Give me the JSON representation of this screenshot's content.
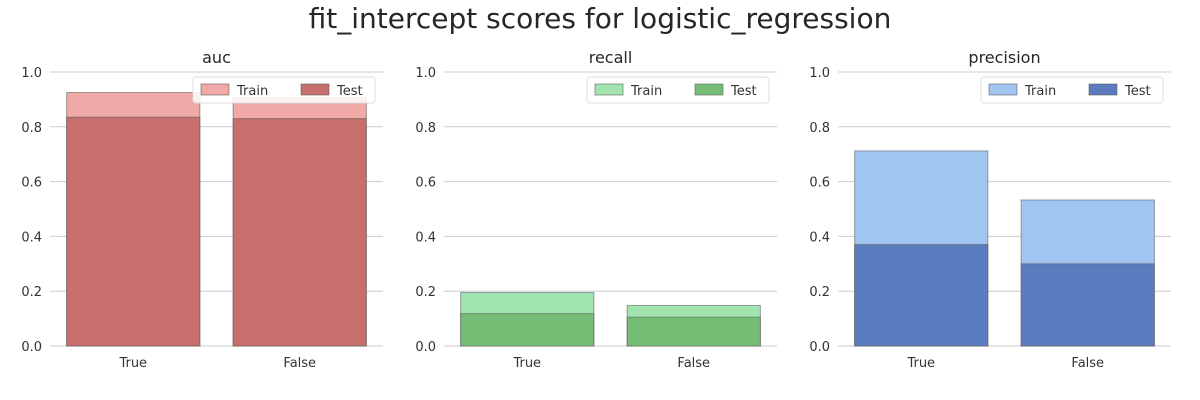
{
  "title": "fit_intercept scores for logistic_regression",
  "chart_data": [
    {
      "type": "bar",
      "title": "auc",
      "categories": [
        "True",
        "False"
      ],
      "ylim": [
        0,
        1.0
      ],
      "yticks": [
        "0.0",
        "0.2",
        "0.4",
        "0.6",
        "0.8",
        "1.0"
      ],
      "grid": true,
      "legend_position": "top-right",
      "series": [
        {
          "name": "Train",
          "values": [
            0.925,
            0.905
          ],
          "color": "#f0a9a6"
        },
        {
          "name": "Test",
          "values": [
            0.835,
            0.83
          ],
          "color": "#c66f6c"
        }
      ]
    },
    {
      "type": "bar",
      "title": "recall",
      "categories": [
        "True",
        "False"
      ],
      "ylim": [
        0,
        1.0
      ],
      "yticks": [
        "0.0",
        "0.2",
        "0.4",
        "0.6",
        "0.8",
        "1.0"
      ],
      "grid": true,
      "legend_position": "top-right",
      "series": [
        {
          "name": "Train",
          "values": [
            0.195,
            0.148
          ],
          "color": "#a2e4b0"
        },
        {
          "name": "Test",
          "values": [
            0.118,
            0.105
          ],
          "color": "#75bd74"
        }
      ]
    },
    {
      "type": "bar",
      "title": "precision",
      "categories": [
        "True",
        "False"
      ],
      "ylim": [
        0,
        1.0
      ],
      "yticks": [
        "0.0",
        "0.2",
        "0.4",
        "0.6",
        "0.8",
        "1.0"
      ],
      "grid": true,
      "legend_position": "top-right",
      "series": [
        {
          "name": "Train",
          "values": [
            0.712,
            0.533
          ],
          "color": "#a1c5f1"
        },
        {
          "name": "Test",
          "values": [
            0.37,
            0.3
          ],
          "color": "#5b7dbf"
        }
      ]
    }
  ]
}
